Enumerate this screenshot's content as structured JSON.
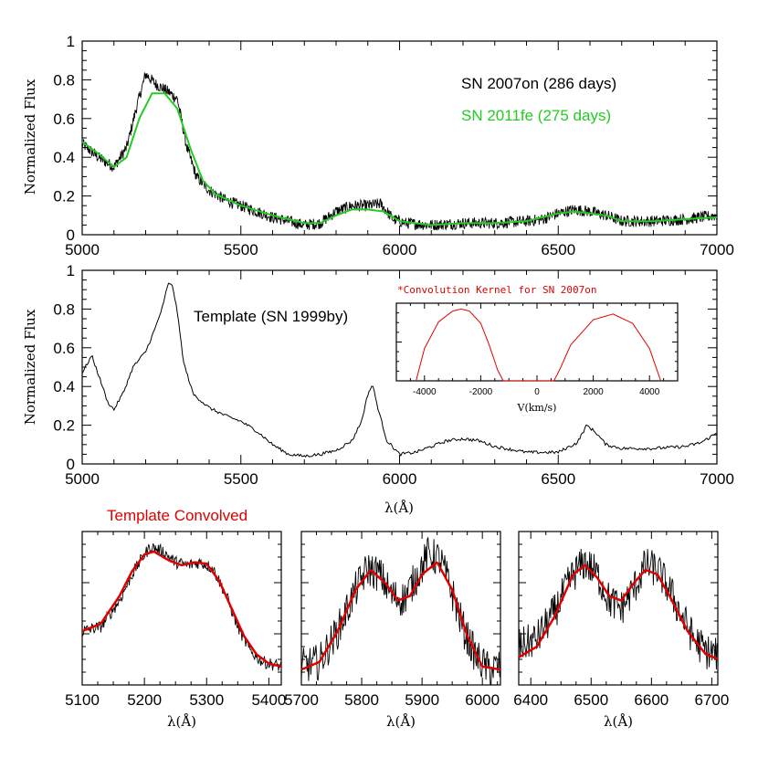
{
  "chart_data": [
    {
      "id": "top",
      "type": "line",
      "xlim": [
        5000,
        7000
      ],
      "ylim": [
        0,
        1
      ],
      "xticks": [
        5000,
        5500,
        6000,
        6500,
        7000
      ],
      "yticks": [
        0,
        0.2,
        0.4,
        0.6,
        0.8,
        1
      ],
      "ytick_labels": [
        "0",
        "0.2",
        "0.4",
        "0.6",
        "0.8",
        "1"
      ],
      "ylabel": "Normalized Flux",
      "xlabel": "",
      "series": [
        {
          "name": "SN 2007on (286 days)",
          "color": "#000000",
          "x": [
            5000,
            5050,
            5100,
            5140,
            5170,
            5200,
            5230,
            5270,
            5300,
            5330,
            5360,
            5400,
            5450,
            5500,
            5550,
            5600,
            5650,
            5700,
            5750,
            5800,
            5850,
            5900,
            5940,
            5980,
            6020,
            6100,
            6200,
            6300,
            6400,
            6450,
            6500,
            6550,
            6600,
            6650,
            6700,
            6800,
            6900,
            7000
          ],
          "y": [
            0.47,
            0.4,
            0.35,
            0.45,
            0.65,
            0.83,
            0.78,
            0.74,
            0.7,
            0.45,
            0.3,
            0.23,
            0.18,
            0.15,
            0.12,
            0.09,
            0.07,
            0.05,
            0.06,
            0.12,
            0.15,
            0.15,
            0.16,
            0.08,
            0.06,
            0.05,
            0.06,
            0.06,
            0.07,
            0.08,
            0.11,
            0.13,
            0.12,
            0.1,
            0.07,
            0.07,
            0.08,
            0.1
          ]
        },
        {
          "name": "SN 2011fe (275 days)",
          "color": "#22cc22",
          "x": [
            5000,
            5050,
            5100,
            5140,
            5180,
            5220,
            5260,
            5300,
            5340,
            5380,
            5420,
            5500,
            5600,
            5700,
            5750,
            5800,
            5850,
            5900,
            5950,
            6000,
            6100,
            6200,
            6300,
            6400,
            6450,
            6500,
            6550,
            6600,
            6650,
            6700,
            6800,
            6900,
            7000
          ],
          "y": [
            0.48,
            0.42,
            0.35,
            0.4,
            0.6,
            0.73,
            0.73,
            0.65,
            0.45,
            0.28,
            0.21,
            0.15,
            0.1,
            0.06,
            0.06,
            0.1,
            0.13,
            0.13,
            0.12,
            0.07,
            0.05,
            0.06,
            0.06,
            0.07,
            0.09,
            0.11,
            0.12,
            0.11,
            0.1,
            0.07,
            0.07,
            0.08,
            0.09
          ]
        }
      ]
    },
    {
      "id": "template",
      "type": "line",
      "xlim": [
        5000,
        7000
      ],
      "ylim": [
        0,
        1
      ],
      "xticks": [
        5000,
        5500,
        6000,
        6500,
        7000
      ],
      "yticks": [
        0,
        0.2,
        0.4,
        0.6,
        0.8,
        1
      ],
      "ytick_labels": [
        "0",
        "0.2",
        "0.4",
        "0.6",
        "0.8",
        "1"
      ],
      "ylabel": "Normalized Flux",
      "xlabel": "λ(Å)",
      "series": [
        {
          "name": "Template (SN 1999by)",
          "color": "#000000",
          "x": [
            5000,
            5030,
            5060,
            5080,
            5100,
            5130,
            5160,
            5200,
            5230,
            5255,
            5270,
            5285,
            5300,
            5320,
            5350,
            5400,
            5450,
            5500,
            5550,
            5600,
            5650,
            5700,
            5750,
            5800,
            5850,
            5880,
            5900,
            5915,
            5930,
            5960,
            6000,
            6050,
            6100,
            6150,
            6200,
            6250,
            6300,
            6400,
            6500,
            6560,
            6590,
            6620,
            6650,
            6700,
            6800,
            6900,
            6950,
            7000
          ],
          "y": [
            0.47,
            0.56,
            0.42,
            0.32,
            0.28,
            0.37,
            0.5,
            0.58,
            0.7,
            0.82,
            0.93,
            0.92,
            0.78,
            0.52,
            0.36,
            0.29,
            0.25,
            0.22,
            0.17,
            0.1,
            0.05,
            0.04,
            0.05,
            0.07,
            0.12,
            0.22,
            0.36,
            0.41,
            0.3,
            0.12,
            0.05,
            0.06,
            0.09,
            0.12,
            0.13,
            0.12,
            0.09,
            0.06,
            0.06,
            0.11,
            0.2,
            0.16,
            0.1,
            0.08,
            0.08,
            0.09,
            0.11,
            0.16
          ]
        }
      ]
    },
    {
      "id": "kernel",
      "type": "line",
      "title": "*Convolution Kernel for SN 2007on",
      "xlim": [
        -5000,
        5000
      ],
      "xticks": [
        -4000,
        -2000,
        0,
        2000,
        4000
      ],
      "xlabel": "V(km/s)",
      "series": [
        {
          "color": "#e00000",
          "x": [
            -4300,
            -4000,
            -3500,
            -3000,
            -2700,
            -2400,
            -2000,
            -1700,
            -1400,
            -1200,
            600,
            800,
            1200,
            2000,
            2700,
            3400,
            4000,
            4400
          ],
          "y": [
            0.0,
            0.45,
            0.82,
            0.97,
            1.0,
            0.97,
            0.8,
            0.5,
            0.15,
            0.0,
            0.0,
            0.15,
            0.5,
            0.85,
            0.93,
            0.8,
            0.45,
            0.0
          ]
        }
      ]
    },
    {
      "id": "zoom1",
      "type": "line",
      "title": "Template Convolved",
      "xlim": [
        5100,
        5420
      ],
      "xticks": [
        5100,
        5200,
        5300,
        5400
      ],
      "xlabel": "λ(Å)",
      "ylim": [
        0,
        1
      ],
      "series": [
        {
          "color": "#000000",
          "x": [
            5100,
            5130,
            5160,
            5180,
            5200,
            5210,
            5230,
            5250,
            5270,
            5290,
            5310,
            5330,
            5350,
            5370,
            5390,
            5420
          ],
          "y": [
            0.35,
            0.38,
            0.55,
            0.72,
            0.85,
            0.9,
            0.87,
            0.8,
            0.78,
            0.8,
            0.76,
            0.6,
            0.38,
            0.22,
            0.15,
            0.12
          ]
        },
        {
          "name": "Template Convolved",
          "color": "#e00000",
          "x": [
            5100,
            5130,
            5160,
            5180,
            5200,
            5215,
            5240,
            5260,
            5280,
            5300,
            5320,
            5340,
            5360,
            5380,
            5400,
            5420
          ],
          "y": [
            0.35,
            0.4,
            0.58,
            0.74,
            0.85,
            0.87,
            0.81,
            0.78,
            0.8,
            0.79,
            0.68,
            0.5,
            0.32,
            0.2,
            0.14,
            0.12
          ]
        }
      ]
    },
    {
      "id": "zoom2",
      "type": "line",
      "xlim": [
        5700,
        6030
      ],
      "xticks": [
        5700,
        5800,
        5900,
        6000
      ],
      "xlabel": "λ(Å)",
      "ylim": [
        0,
        1
      ],
      "series": [
        {
          "color": "#000000",
          "x": [
            5700,
            5730,
            5760,
            5790,
            5810,
            5830,
            5850,
            5870,
            5890,
            5910,
            5930,
            5950,
            5970,
            5990,
            6010,
            6030
          ],
          "y": [
            0.12,
            0.15,
            0.35,
            0.62,
            0.76,
            0.72,
            0.58,
            0.56,
            0.7,
            0.85,
            0.82,
            0.6,
            0.35,
            0.18,
            0.1,
            0.12
          ]
        },
        {
          "color": "#e00000",
          "x": [
            5700,
            5730,
            5760,
            5790,
            5815,
            5840,
            5860,
            5880,
            5900,
            5925,
            5950,
            5975,
            6000,
            6030
          ],
          "y": [
            0.1,
            0.15,
            0.35,
            0.62,
            0.75,
            0.66,
            0.55,
            0.58,
            0.72,
            0.8,
            0.62,
            0.32,
            0.12,
            0.1
          ]
        }
      ]
    },
    {
      "id": "zoom3",
      "type": "line",
      "xlim": [
        6380,
        6710
      ],
      "xticks": [
        6400,
        6500,
        6600,
        6700
      ],
      "xlabel": "λ(Å)",
      "ylim": [
        0,
        1
      ],
      "series": [
        {
          "color": "#000000",
          "x": [
            6380,
            6410,
            6440,
            6470,
            6490,
            6510,
            6530,
            6550,
            6570,
            6590,
            6610,
            6630,
            6650,
            6670,
            6690,
            6710
          ],
          "y": [
            0.25,
            0.3,
            0.48,
            0.72,
            0.8,
            0.72,
            0.55,
            0.5,
            0.62,
            0.78,
            0.75,
            0.62,
            0.45,
            0.3,
            0.22,
            0.2
          ]
        },
        {
          "color": "#e00000",
          "x": [
            6380,
            6410,
            6440,
            6470,
            6490,
            6510,
            6530,
            6550,
            6570,
            6590,
            6610,
            6630,
            6660,
            6690,
            6710
          ],
          "y": [
            0.18,
            0.25,
            0.45,
            0.72,
            0.78,
            0.7,
            0.58,
            0.55,
            0.66,
            0.75,
            0.72,
            0.58,
            0.35,
            0.2,
            0.17
          ]
        }
      ]
    }
  ]
}
